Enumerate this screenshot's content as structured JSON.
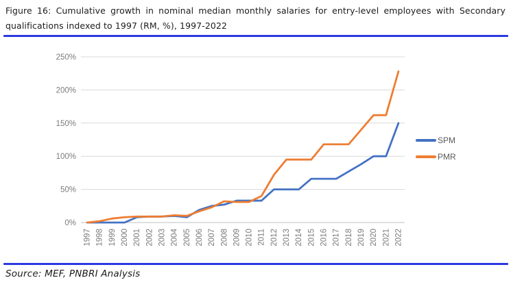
{
  "figure": {
    "title_line1": "Figure 16: Cumulative growth in nominal median monthly salaries for entry-level employees with Secondary",
    "title_line2": "qualifications indexed to 1997 (RM, %), 1997-2022"
  },
  "source": "Source: MEF, PNBRI Analysis",
  "colors": {
    "divider": "#2b38e0",
    "grid": "#d9d9d9",
    "axis_line": "#bfbfbf",
    "tick_text": "#7b7b7b",
    "legend_text": "#595959"
  },
  "chart_data": {
    "type": "line",
    "title": "",
    "xlabel": "",
    "ylabel": "",
    "categories": [
      "1997",
      "1998",
      "1999",
      "2000",
      "2001",
      "2002",
      "2003",
      "2004",
      "2005",
      "2006",
      "2007",
      "2008",
      "2009",
      "2010",
      "2011",
      "2012",
      "2013",
      "2014",
      "2015",
      "2016",
      "2017",
      "2018",
      "2019",
      "2020",
      "2021",
      "2022"
    ],
    "series": [
      {
        "name": "SPM",
        "color": "#4472C4",
        "values": [
          0,
          0,
          0,
          0,
          8,
          9,
          9,
          10,
          8,
          19,
          25,
          27,
          33,
          33,
          33,
          50,
          50,
          50,
          66,
          66,
          66,
          77,
          88,
          100,
          100,
          150
        ]
      },
      {
        "name": "PMR",
        "color": "#ED7D31",
        "values": [
          0,
          2,
          6,
          8,
          9,
          9,
          9,
          11,
          10,
          17,
          23,
          32,
          31,
          31,
          40,
          72,
          95,
          95,
          95,
          118,
          118,
          118,
          140,
          162,
          162,
          228
        ]
      }
    ],
    "ylim": [
      0,
      250
    ],
    "y_ticks": [
      0,
      50,
      100,
      150,
      200,
      250
    ],
    "y_tick_suffix": "%",
    "grid": "horizontal",
    "legend_position": "right"
  }
}
